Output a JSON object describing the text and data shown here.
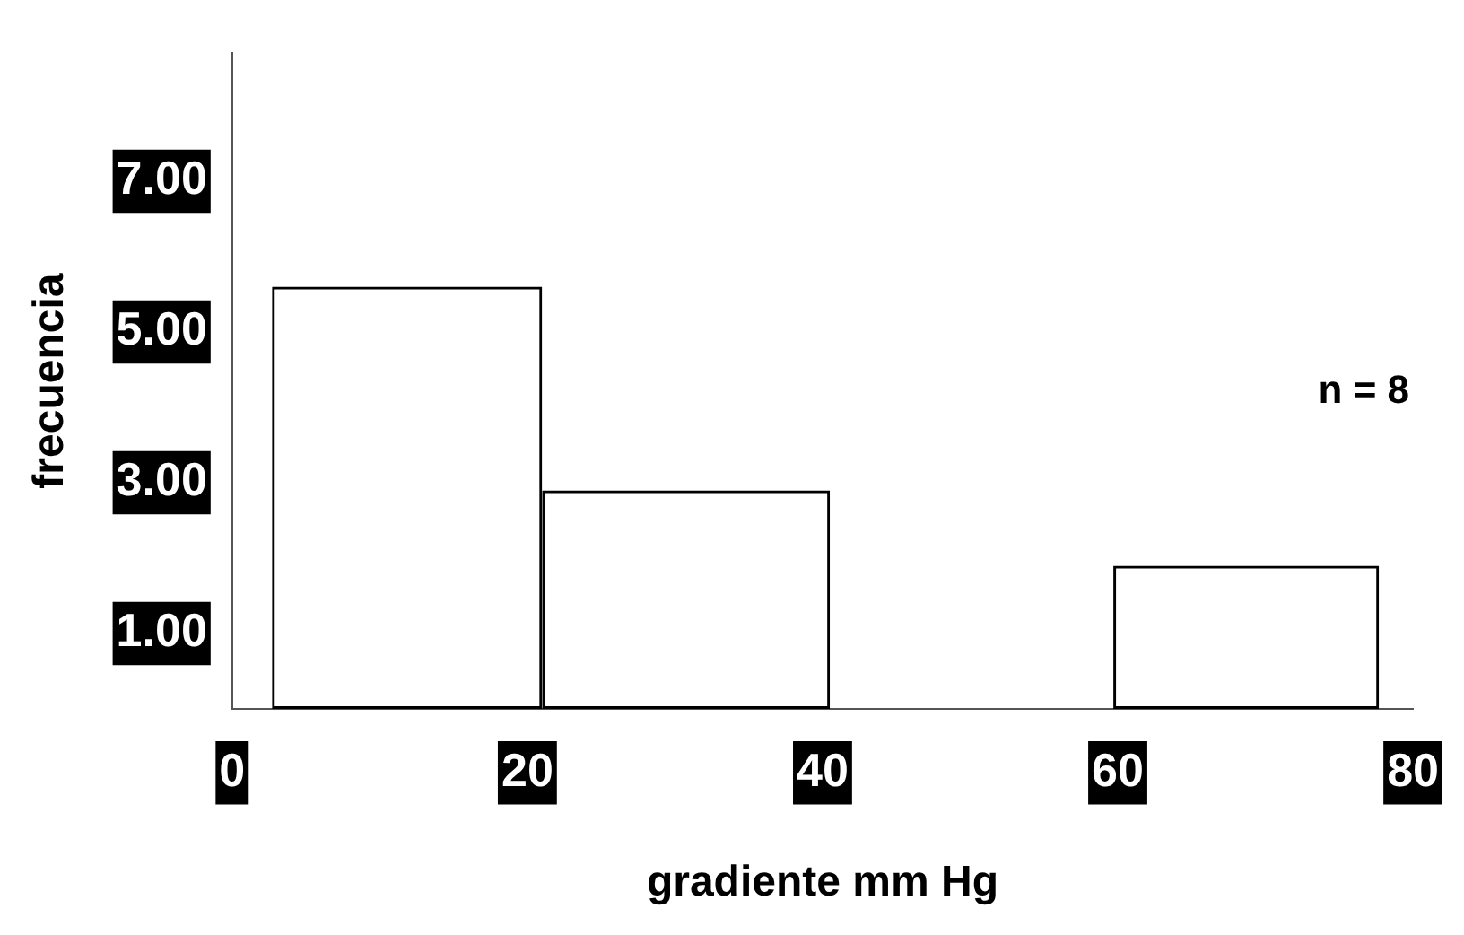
{
  "chart_data": {
    "type": "histogram",
    "xlabel": "gradiente mm Hg",
    "ylabel": "frecuencia",
    "bins": [
      2.7,
      21,
      40.5,
      59.7,
      77.7
    ],
    "values": [
      5.6,
      2.9,
      null,
      1.9
    ],
    "color": "#000000",
    "xlim": [
      0,
      80
    ],
    "xticks": [
      0,
      20,
      40,
      60,
      80
    ],
    "ylim": [
      0,
      8.7
    ],
    "yticks": [
      {
        "value": 1,
        "label": "1.00"
      },
      {
        "value": 3,
        "label": "3.00"
      },
      {
        "value": 5,
        "label": "5.00"
      },
      {
        "value": 7,
        "label": "7.00"
      }
    ],
    "grid": false,
    "annotations": [
      "n = 8"
    ]
  }
}
